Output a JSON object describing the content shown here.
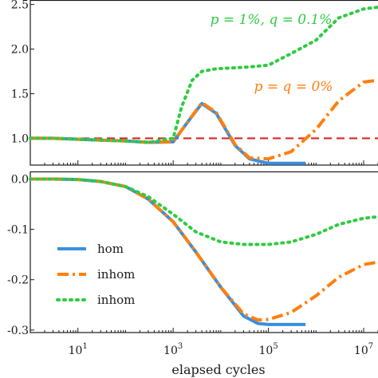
{
  "chart_data": [
    {
      "type": "line",
      "xscale": "log",
      "xlim": [
        1,
        20000000
      ],
      "ylim": [
        0.7,
        2.55
      ],
      "yticks": [
        "1.0",
        "1.5",
        "2.0",
        "2.5"
      ],
      "xlabel": "",
      "ylabel": "",
      "reference_line": {
        "y": 1.0,
        "color": "#d62728",
        "style": "dashed"
      },
      "annotations": [
        {
          "text": "p = 1%, q = 0.1%",
          "color": "#2ecc40",
          "x": 6000,
          "y": 2.28
        },
        {
          "text": "p =  q = 0%",
          "color": "#ff7f0e",
          "x": 50000,
          "y": 1.53
        }
      ],
      "series": [
        {
          "color": "#3a8fde",
          "style": "solid",
          "x": [
            1,
            3,
            10,
            30,
            100,
            300,
            1000,
            2000,
            4000,
            8000,
            20000,
            40000,
            100000,
            300000,
            600000
          ],
          "y": [
            1.0,
            1.0,
            0.99,
            0.98,
            0.97,
            0.955,
            0.96,
            1.18,
            1.39,
            1.28,
            0.92,
            0.77,
            0.72,
            0.72,
            0.72
          ]
        },
        {
          "color": "#ff7f0e",
          "style": "dashdot",
          "x": [
            1,
            3,
            10,
            30,
            100,
            300,
            1000,
            2000,
            4000,
            8000,
            20000,
            40000,
            100000,
            300000,
            1000000,
            3000000,
            10000000,
            20000000
          ],
          "y": [
            1.0,
            1.0,
            0.99,
            0.98,
            0.97,
            0.955,
            0.96,
            1.18,
            1.4,
            1.29,
            0.93,
            0.78,
            0.77,
            0.85,
            1.1,
            1.42,
            1.63,
            1.65
          ]
        },
        {
          "color": "#2ecc40",
          "style": "dotted",
          "x": [
            1,
            3,
            10,
            30,
            100,
            300,
            1000,
            1500,
            2500,
            4000,
            8000,
            20000,
            40000,
            100000,
            300000,
            1000000,
            3000000,
            10000000,
            20000000
          ],
          "y": [
            1.0,
            1.0,
            0.99,
            0.98,
            0.97,
            0.955,
            1.0,
            1.35,
            1.65,
            1.75,
            1.78,
            1.79,
            1.8,
            1.82,
            1.95,
            2.1,
            2.35,
            2.45,
            2.47
          ]
        }
      ]
    },
    {
      "type": "line",
      "xscale": "log",
      "xlim": [
        1,
        20000000
      ],
      "ylim": [
        -0.305,
        0.015
      ],
      "xticks": [
        10,
        1000,
        100000,
        10000000
      ],
      "yticks": [
        "0.0",
        "-0.1",
        "-0.2",
        "-0.3"
      ],
      "xlabel": "elapsed cycles",
      "ylabel": "",
      "legend": {
        "location": "lower-left",
        "entries": [
          "hom",
          "inhom",
          "inhom"
        ]
      },
      "series": [
        {
          "name": "hom",
          "color": "#3a8fde",
          "style": "solid",
          "x": [
            1,
            3,
            10,
            30,
            100,
            300,
            1000,
            3000,
            10000,
            30000,
            60000,
            100000,
            200000,
            600000
          ],
          "y": [
            0.0,
            0.0,
            -0.001,
            -0.005,
            -0.015,
            -0.04,
            -0.085,
            -0.145,
            -0.215,
            -0.272,
            -0.287,
            -0.289,
            -0.289,
            -0.289
          ]
        },
        {
          "name": "inhom",
          "color": "#ff7f0e",
          "style": "dashdot",
          "x": [
            1,
            3,
            10,
            30,
            100,
            300,
            1000,
            3000,
            10000,
            30000,
            60000,
            100000,
            300000,
            1000000,
            3000000,
            10000000,
            20000000
          ],
          "y": [
            0.0,
            0.0,
            -0.001,
            -0.005,
            -0.015,
            -0.04,
            -0.085,
            -0.145,
            -0.215,
            -0.268,
            -0.28,
            -0.279,
            -0.265,
            -0.232,
            -0.195,
            -0.17,
            -0.165
          ]
        },
        {
          "name": "inhom",
          "color": "#2ecc40",
          "style": "dotted",
          "x": [
            1,
            3,
            10,
            30,
            100,
            300,
            1000,
            3000,
            10000,
            30000,
            100000,
            300000,
            1000000,
            3000000,
            10000000,
            20000000
          ],
          "y": [
            0.0,
            0.0,
            -0.001,
            -0.005,
            -0.015,
            -0.035,
            -0.07,
            -0.105,
            -0.125,
            -0.13,
            -0.13,
            -0.125,
            -0.11,
            -0.09,
            -0.078,
            -0.075
          ]
        }
      ]
    }
  ]
}
